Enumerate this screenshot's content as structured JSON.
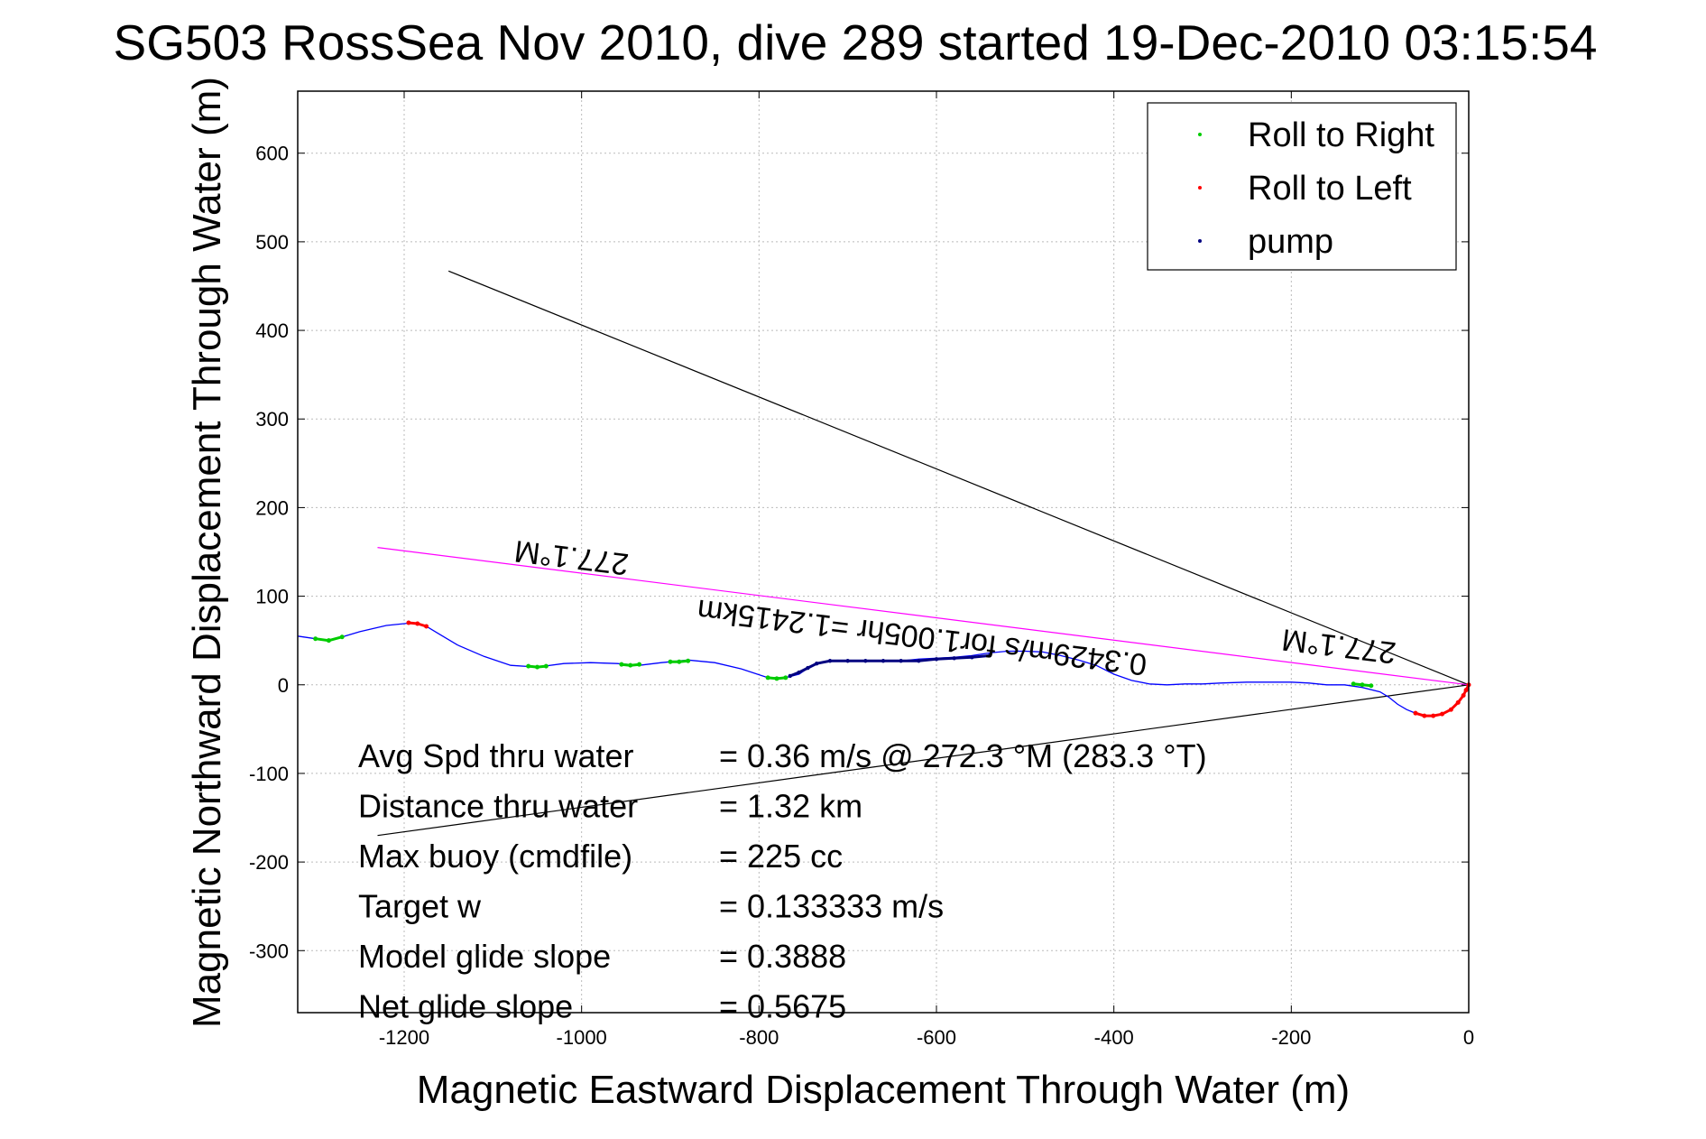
{
  "chart_data": {
    "type": "line",
    "title": "SG503 RossSea Nov 2010, dive 289 started 19-Dec-2010 03:15:54",
    "xlabel": "Magnetic Eastward Displacement Through Water (m)",
    "ylabel": "Magnetic Northward Displacement Through Water (m)",
    "xlim": [
      -1320,
      0
    ],
    "ylim": [
      -370,
      670
    ],
    "xticks": [
      -1200,
      -1000,
      -800,
      -600,
      -400,
      -200,
      0
    ],
    "yticks": [
      -300,
      -200,
      -100,
      0,
      100,
      200,
      300,
      400,
      500,
      600
    ],
    "grid": true,
    "legend_position": "top-right",
    "legend": [
      {
        "label": "Roll to Right",
        "color": "#00cc00"
      },
      {
        "label": "Roll to Left",
        "color": "#ff0000"
      },
      {
        "label": "pump",
        "color": "#000080"
      }
    ],
    "track": {
      "name": "dive track",
      "color": "#0000ff",
      "x": [
        -1320,
        -1300,
        -1285,
        -1270,
        -1250,
        -1220,
        -1190,
        -1175,
        -1160,
        -1140,
        -1110,
        -1080,
        -1050,
        -1020,
        -990,
        -960,
        -935,
        -910,
        -880,
        -850,
        -820,
        -790,
        -770,
        -755,
        -740,
        -720,
        -700,
        -680,
        -660,
        -640,
        -620,
        -600,
        -580,
        -560,
        -540,
        -520,
        -500,
        -480,
        -460,
        -440,
        -420,
        -400,
        -380,
        -360,
        -340,
        -320,
        -300,
        -280,
        -250,
        -220,
        -200,
        -180,
        -160,
        -140,
        -120,
        -100,
        -90,
        -80,
        -70,
        -60,
        -50,
        -40,
        -30,
        -20,
        -12,
        -6,
        -3,
        0
      ],
      "y": [
        55,
        52,
        50,
        54,
        60,
        67,
        70,
        66,
        57,
        45,
        32,
        22,
        20,
        24,
        25,
        24,
        22,
        25,
        28,
        25,
        18,
        8,
        8,
        12,
        22,
        27,
        27,
        27,
        27,
        27,
        29,
        30,
        31,
        33,
        36,
        38,
        38,
        37,
        33,
        28,
        22,
        12,
        5,
        1,
        0,
        1,
        1,
        2,
        3,
        3,
        3,
        2,
        0,
        0,
        -3,
        -8,
        -14,
        -22,
        -28,
        -32,
        -35,
        -35,
        -33,
        -28,
        -20,
        -12,
        -6,
        0
      ]
    },
    "roll_right_segments": [
      {
        "x": [
          -1300,
          -1285,
          -1270
        ],
        "y": [
          52,
          50,
          54
        ]
      },
      {
        "x": [
          -1060,
          -1050,
          -1040
        ],
        "y": [
          21,
          20,
          21
        ]
      },
      {
        "x": [
          -955,
          -945,
          -935
        ],
        "y": [
          23,
          22,
          23
        ]
      },
      {
        "x": [
          -900,
          -890,
          -880
        ],
        "y": [
          26,
          26,
          27
        ]
      },
      {
        "x": [
          -790,
          -780,
          -770
        ],
        "y": [
          8,
          7,
          8
        ]
      },
      {
        "x": [
          -130,
          -120,
          -110
        ],
        "y": [
          1,
          0,
          -1
        ]
      }
    ],
    "roll_left_segments": [
      {
        "x": [
          -1195,
          -1185,
          -1175
        ],
        "y": [
          70,
          69,
          66
        ]
      },
      {
        "x": [
          -60,
          -50,
          -40,
          -30,
          -20,
          -12,
          -6,
          -3,
          0
        ],
        "y": [
          -32,
          -35,
          -35,
          -33,
          -28,
          -20,
          -12,
          -6,
          0
        ]
      }
    ],
    "pump_segment": {
      "x": [
        -765,
        -755,
        -745,
        -735,
        -720,
        -700,
        -680,
        -660,
        -640,
        -620,
        -600,
        -580,
        -560,
        -540
      ],
      "y": [
        10,
        14,
        19,
        24,
        27,
        27,
        27,
        27,
        27,
        27,
        29,
        30,
        31,
        33
      ]
    },
    "lines": [
      {
        "name": "black-line-upper",
        "color": "#000000",
        "x": [
          -1150,
          0
        ],
        "y": [
          467,
          0
        ]
      },
      {
        "name": "black-line-lower",
        "color": "#000000",
        "x": [
          -1230,
          0
        ],
        "y": [
          -170,
          0
        ]
      },
      {
        "name": "magenta-heading-line",
        "color": "#ff00ff",
        "x": [
          -1230,
          0
        ],
        "y": [
          155,
          0
        ]
      }
    ],
    "annotations": [
      {
        "name": "heading-label-upper",
        "text": "277.1°M",
        "x": -1010,
        "y": 155,
        "rotate": 187
      },
      {
        "name": "heading-label-lower",
        "text": "277.1°M",
        "x": -145,
        "y": 55,
        "rotate": 187
      },
      {
        "name": "speed-label",
        "text": "0.3429m/s for1.005hr =1.2415km",
        "x": -615,
        "y": 65,
        "rotate": 187
      }
    ],
    "stats": [
      {
        "label": "Avg Spd thru water",
        "value": "=  0.36 m/s @ 272.3 °M (283.3 °T)"
      },
      {
        "label": "Distance thru water",
        "value": "=  1.32 km"
      },
      {
        "label": "Max buoy (cmdfile)",
        "value": "= 225 cc"
      },
      {
        "label": "Target w",
        "value": "= 0.133333 m/s"
      },
      {
        "label": "Model glide slope",
        "value": "= 0.3888"
      },
      {
        "label": "Net glide slope",
        "value": "= 0.5675"
      }
    ]
  }
}
